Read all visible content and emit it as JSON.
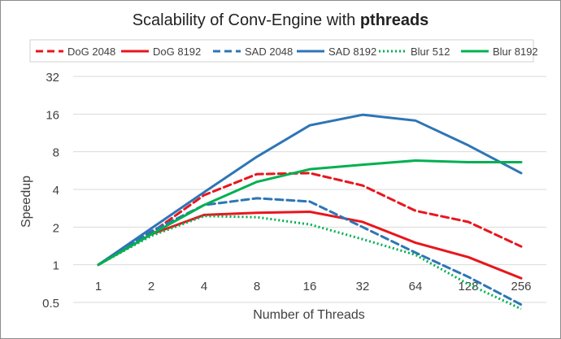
{
  "chart_data": {
    "type": "line",
    "title_prefix": "Scalability of Conv-Engine with ",
    "title_bold": "pthreads",
    "xlabel": "Number of Threads",
    "ylabel": "Speedup",
    "x": [
      1,
      2,
      4,
      8,
      16,
      32,
      64,
      128,
      256
    ],
    "x_tick_labels": [
      "1",
      "2",
      "4",
      "8",
      "16",
      "32",
      "64",
      "128",
      "256"
    ],
    "y_scale": "log2",
    "ylim": [
      0.5,
      32
    ],
    "y_tick_values": [
      0.5,
      1,
      2,
      4,
      8,
      16,
      32
    ],
    "y_tick_labels": [
      "0.5",
      "1",
      "2",
      "4",
      "8",
      "16",
      "32"
    ],
    "grid": "horizontal",
    "legend_position": "top",
    "series": [
      {
        "name": "DoG 2048",
        "color": "#e8161d",
        "dash": "dashed",
        "values": [
          1,
          1.8,
          3.6,
          5.3,
          5.4,
          4.3,
          2.7,
          2.2,
          1.4
        ]
      },
      {
        "name": "DoG 8192",
        "color": "#e8161d",
        "dash": "solid",
        "values": [
          1,
          1.75,
          2.5,
          2.6,
          2.65,
          2.2,
          1.5,
          1.15,
          0.78
        ]
      },
      {
        "name": "SAD 2048",
        "color": "#2e75b6",
        "dash": "dashed",
        "values": [
          1,
          1.85,
          3.0,
          3.4,
          3.2,
          2.0,
          1.25,
          0.8,
          0.48
        ]
      },
      {
        "name": "SAD 8192",
        "color": "#2e75b6",
        "dash": "solid",
        "values": [
          1,
          1.95,
          3.8,
          7.3,
          13.0,
          15.8,
          14.2,
          9.0,
          5.4
        ]
      },
      {
        "name": "Blur 512",
        "color": "#00b050",
        "dash": "dotted",
        "values": [
          1,
          1.7,
          2.45,
          2.4,
          2.1,
          1.6,
          1.2,
          0.7,
          0.4
        ]
      },
      {
        "name": "Blur 8192",
        "color": "#00b050",
        "dash": "solid",
        "values": [
          1,
          1.75,
          3.0,
          4.6,
          5.8,
          6.3,
          6.8,
          6.6,
          6.6
        ]
      }
    ]
  }
}
